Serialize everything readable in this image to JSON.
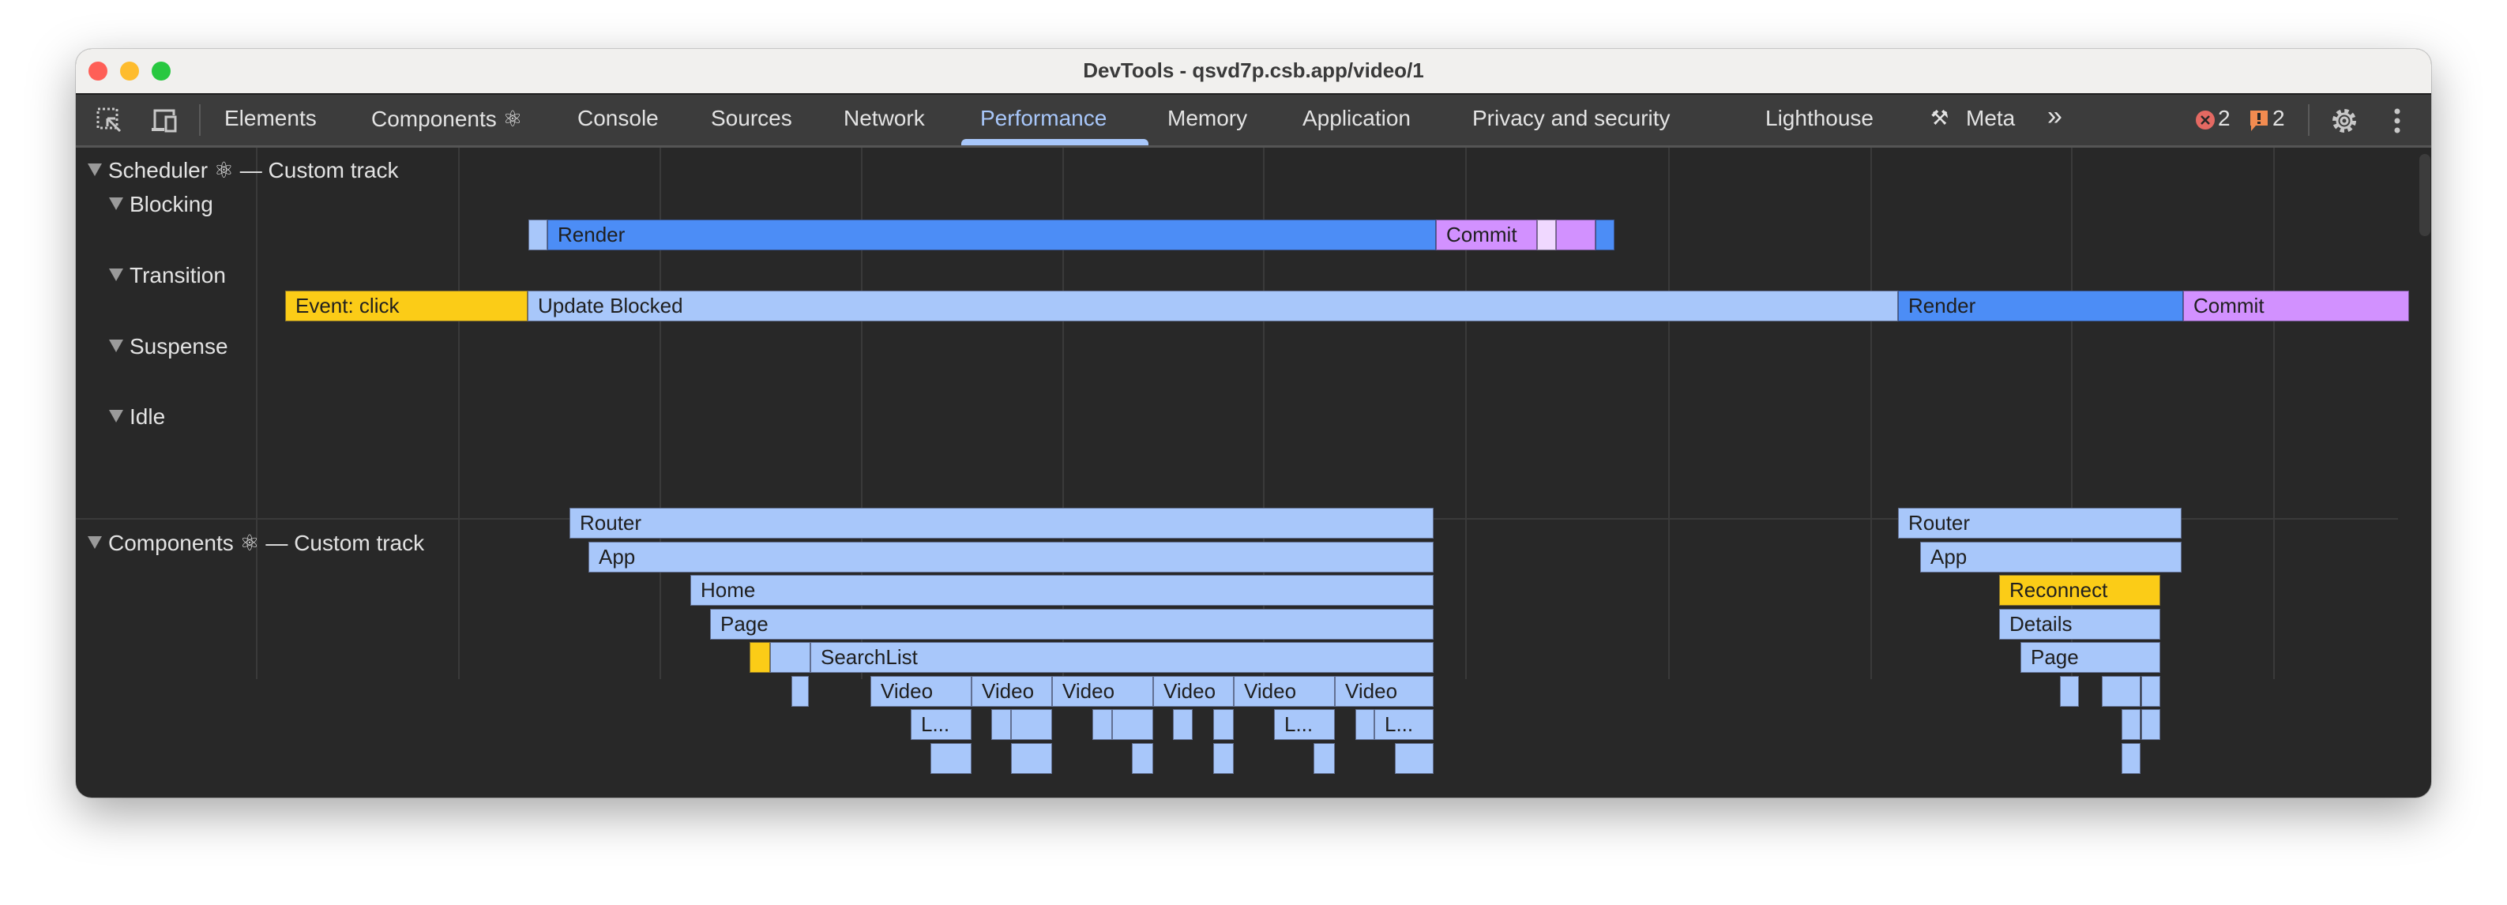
{
  "window": {
    "title": "DevTools - qsvd7p.csb.app/video/1"
  },
  "toolbar": {
    "tabs": [
      {
        "label": "Elements"
      },
      {
        "label": "Components ⚛"
      },
      {
        "label": "Console"
      },
      {
        "label": "Sources"
      },
      {
        "label": "Network"
      },
      {
        "label": "Performance",
        "active": true
      },
      {
        "label": "Memory"
      },
      {
        "label": "Application"
      },
      {
        "label": "Privacy and security"
      },
      {
        "label": "Lighthouse"
      },
      {
        "label": "Meta"
      }
    ],
    "more_tabs": "»",
    "errors_count": "2",
    "warnings_count": "2"
  },
  "colors": {
    "accent": "#a8c7fa",
    "render": "#4c8df6",
    "commit": "#d291ff",
    "event": "#fbcc17",
    "light_bar": "#a8c7fa"
  },
  "scheduler": {
    "header": "Scheduler ⚛ — Custom track",
    "lanes": [
      "Blocking",
      "Transition",
      "Suspense",
      "Idle"
    ],
    "blocking_bars": [
      "",
      "Render",
      "Commit",
      "",
      "",
      ""
    ],
    "transition_bars": [
      "Event: click",
      "Update Blocked",
      "Render",
      "Commit"
    ]
  },
  "components": {
    "header": "Components ⚛ — Custom track",
    "left_labels": [
      "Router",
      "App",
      "Home",
      "Page",
      "SearchList",
      "Video",
      "Video",
      "Video",
      "Video",
      "Video",
      "Video",
      "L...",
      "L...",
      "L..."
    ],
    "right_labels": [
      "Router",
      "App",
      "Reconnect",
      "Details",
      "Page"
    ]
  }
}
